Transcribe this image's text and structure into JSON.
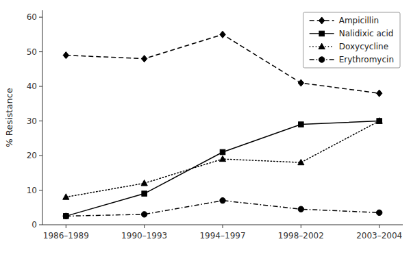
{
  "chart_data": {
    "type": "line",
    "categories": [
      "1986–1989",
      "1990–1993",
      "1994–1997",
      "1998–2002",
      "2003–2004"
    ],
    "series": [
      {
        "name": "Ampicillin",
        "values": [
          49,
          48,
          55,
          41,
          38
        ],
        "color": "#000000",
        "marker": "diamond",
        "line_style": "dashed"
      },
      {
        "name": "Nalidixic acid",
        "values": [
          2.5,
          9,
          21,
          29,
          30
        ],
        "color": "#000000",
        "marker": "square",
        "line_style": "solid"
      },
      {
        "name": "Doxycycline",
        "values": [
          8,
          12,
          19,
          18,
          30
        ],
        "color": "#000000",
        "marker": "triangle",
        "line_style": "dotted"
      },
      {
        "name": "Erythromycin",
        "values": [
          2.5,
          3,
          7,
          4.5,
          3.5
        ],
        "color": "#000000",
        "marker": "circle",
        "line_style": "dashdot"
      }
    ],
    "ylabel": "% Resistance",
    "ylim": [
      0,
      62
    ],
    "yticks": [
      0,
      10,
      20,
      30,
      40,
      50,
      60
    ],
    "grid": false,
    "legend": "upper right"
  }
}
